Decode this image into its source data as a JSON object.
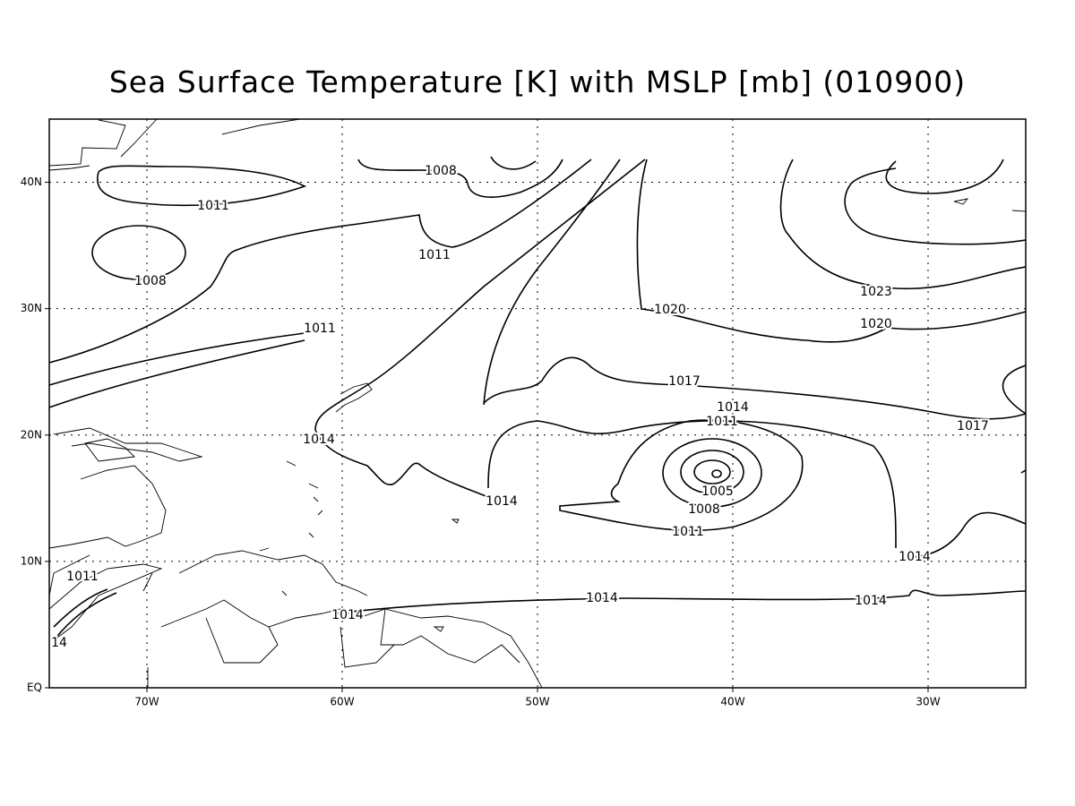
{
  "map": {
    "title": "Sea Surface Temperature [K] with MSLP [mb] (010900)",
    "lonlim": [
      -75,
      -25
    ],
    "latlim": [
      0,
      45
    ],
    "xticks": [
      {
        "value": -70,
        "label": "70W"
      },
      {
        "value": -60,
        "label": "60W"
      },
      {
        "value": -50,
        "label": "50W"
      },
      {
        "value": -40,
        "label": "40W"
      },
      {
        "value": -30,
        "label": "30W"
      }
    ],
    "yticks": [
      {
        "value": 0,
        "label": "EQ"
      },
      {
        "value": 10,
        "label": "10N"
      },
      {
        "value": 20,
        "label": "20N"
      },
      {
        "value": 30,
        "label": "30N"
      },
      {
        "value": 40,
        "label": "40N"
      }
    ],
    "grid": true,
    "contour_labels": [
      "1008",
      "1011",
      "1008",
      "1011",
      "1011",
      "1014",
      "1014",
      "1020",
      "1023",
      "1020",
      "1017",
      "1017",
      "1014",
      "1011",
      "1005",
      "1008",
      "1011",
      "1014",
      "1014",
      "1014",
      "1014",
      "1011",
      "14"
    ]
  }
}
